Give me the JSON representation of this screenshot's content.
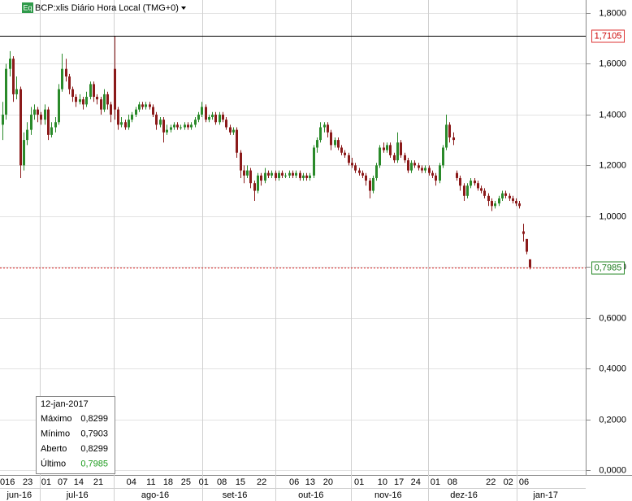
{
  "header": {
    "badge": "Eq",
    "title": "BCP:xlis Diário Hora Local (TMG+0)"
  },
  "chart_data": {
    "type": "candlestick",
    "candles": [
      [
        1.36,
        1.45,
        1.3,
        1.4
      ],
      [
        1.4,
        1.6,
        1.38,
        1.58
      ],
      [
        1.58,
        1.65,
        1.55,
        1.62
      ],
      [
        1.62,
        1.63,
        1.45,
        1.48
      ],
      [
        1.48,
        1.55,
        1.46,
        1.5
      ],
      [
        1.5,
        1.51,
        1.15,
        1.2
      ],
      [
        1.2,
        1.33,
        1.18,
        1.3
      ],
      [
        1.3,
        1.37,
        1.28,
        1.34
      ],
      [
        1.34,
        1.43,
        1.32,
        1.4
      ],
      [
        1.4,
        1.44,
        1.38,
        1.42
      ],
      [
        1.42,
        1.43,
        1.37,
        1.4
      ],
      [
        1.4,
        1.41,
        1.36,
        1.38
      ],
      [
        1.38,
        1.44,
        1.36,
        1.42
      ],
      [
        1.42,
        1.43,
        1.3,
        1.32
      ],
      [
        1.32,
        1.37,
        1.31,
        1.35
      ],
      [
        1.35,
        1.39,
        1.33,
        1.37
      ],
      [
        1.37,
        1.52,
        1.36,
        1.5
      ],
      [
        1.5,
        1.64,
        1.49,
        1.58
      ],
      [
        1.58,
        1.62,
        1.53,
        1.55
      ],
      [
        1.55,
        1.56,
        1.48,
        1.5
      ],
      [
        1.5,
        1.51,
        1.45,
        1.47
      ],
      [
        1.47,
        1.48,
        1.43,
        1.45
      ],
      [
        1.45,
        1.48,
        1.44,
        1.46
      ],
      [
        1.46,
        1.47,
        1.42,
        1.44
      ],
      [
        1.44,
        1.49,
        1.43,
        1.47
      ],
      [
        1.47,
        1.53,
        1.46,
        1.52
      ],
      [
        1.52,
        1.53,
        1.45,
        1.47
      ],
      [
        1.47,
        1.48,
        1.44,
        1.46
      ],
      [
        1.46,
        1.47,
        1.4,
        1.42
      ],
      [
        1.42,
        1.5,
        1.41,
        1.48
      ],
      [
        1.48,
        1.49,
        1.42,
        1.44
      ],
      [
        1.44,
        1.45,
        1.37,
        1.4
      ],
      [
        1.58,
        1.7105,
        1.38,
        1.42
      ],
      [
        1.42,
        1.43,
        1.34,
        1.36
      ],
      [
        1.36,
        1.39,
        1.35,
        1.37
      ],
      [
        1.37,
        1.38,
        1.34,
        1.35
      ],
      [
        1.35,
        1.4,
        1.34,
        1.38
      ],
      [
        1.38,
        1.41,
        1.37,
        1.4
      ],
      [
        1.4,
        1.43,
        1.39,
        1.42
      ],
      [
        1.42,
        1.45,
        1.41,
        1.44
      ],
      [
        1.44,
        1.45,
        1.42,
        1.43
      ],
      [
        1.43,
        1.45,
        1.42,
        1.44
      ],
      [
        1.44,
        1.45,
        1.42,
        1.43
      ],
      [
        1.43,
        1.44,
        1.39,
        1.4
      ],
      [
        1.4,
        1.41,
        1.34,
        1.36
      ],
      [
        1.36,
        1.39,
        1.35,
        1.38
      ],
      [
        1.38,
        1.39,
        1.29,
        1.33
      ],
      [
        1.33,
        1.36,
        1.32,
        1.34
      ],
      [
        1.34,
        1.36,
        1.33,
        1.35
      ],
      [
        1.35,
        1.37,
        1.34,
        1.36
      ],
      [
        1.36,
        1.37,
        1.34,
        1.35
      ],
      [
        1.35,
        1.36,
        1.34,
        1.35
      ],
      [
        1.35,
        1.37,
        1.34,
        1.36
      ],
      [
        1.36,
        1.37,
        1.34,
        1.35
      ],
      [
        1.35,
        1.37,
        1.34,
        1.36
      ],
      [
        1.36,
        1.39,
        1.35,
        1.38
      ],
      [
        1.38,
        1.41,
        1.37,
        1.4
      ],
      [
        1.4,
        1.45,
        1.39,
        1.43
      ],
      [
        1.43,
        1.44,
        1.37,
        1.38
      ],
      [
        1.38,
        1.4,
        1.37,
        1.39
      ],
      [
        1.39,
        1.41,
        1.38,
        1.4
      ],
      [
        1.4,
        1.41,
        1.36,
        1.37
      ],
      [
        1.37,
        1.41,
        1.36,
        1.4
      ],
      [
        1.4,
        1.41,
        1.37,
        1.38
      ],
      [
        1.38,
        1.39,
        1.34,
        1.35
      ],
      [
        1.35,
        1.36,
        1.32,
        1.33
      ],
      [
        1.33,
        1.35,
        1.32,
        1.34
      ],
      [
        1.34,
        1.35,
        1.23,
        1.25
      ],
      [
        1.25,
        1.26,
        1.15,
        1.18
      ],
      [
        1.18,
        1.2,
        1.13,
        1.16
      ],
      [
        1.16,
        1.2,
        1.15,
        1.18
      ],
      [
        1.18,
        1.19,
        1.11,
        1.13
      ],
      [
        1.13,
        1.14,
        1.06,
        1.1
      ],
      [
        1.1,
        1.17,
        1.09,
        1.16
      ],
      [
        1.16,
        1.17,
        1.12,
        1.14
      ],
      [
        1.14,
        1.19,
        1.13,
        1.17
      ],
      [
        1.17,
        1.18,
        1.15,
        1.16
      ],
      [
        1.16,
        1.18,
        1.15,
        1.17
      ],
      [
        1.17,
        1.18,
        1.14,
        1.15
      ],
      [
        1.15,
        1.18,
        1.14,
        1.17
      ],
      [
        1.17,
        1.18,
        1.15,
        1.16
      ],
      [
        1.16,
        1.17,
        1.15,
        1.16
      ],
      [
        1.16,
        1.18,
        1.15,
        1.17
      ],
      [
        1.17,
        1.18,
        1.15,
        1.16
      ],
      [
        1.16,
        1.18,
        1.15,
        1.17
      ],
      [
        1.17,
        1.18,
        1.14,
        1.15
      ],
      [
        1.15,
        1.17,
        1.14,
        1.16
      ],
      [
        1.16,
        1.17,
        1.14,
        1.15
      ],
      [
        1.15,
        1.17,
        1.14,
        1.16
      ],
      [
        1.16,
        1.28,
        1.15,
        1.27
      ],
      [
        1.27,
        1.31,
        1.25,
        1.3
      ],
      [
        1.3,
        1.37,
        1.29,
        1.35
      ],
      [
        1.35,
        1.37,
        1.33,
        1.36
      ],
      [
        1.36,
        1.37,
        1.31,
        1.33
      ],
      [
        1.33,
        1.34,
        1.26,
        1.28
      ],
      [
        1.28,
        1.31,
        1.27,
        1.3
      ],
      [
        1.3,
        1.31,
        1.26,
        1.27
      ],
      [
        1.27,
        1.28,
        1.24,
        1.25
      ],
      [
        1.25,
        1.26,
        1.23,
        1.24
      ],
      [
        1.24,
        1.25,
        1.2,
        1.21
      ],
      [
        1.21,
        1.23,
        1.19,
        1.2
      ],
      [
        1.2,
        1.21,
        1.17,
        1.18
      ],
      [
        1.18,
        1.19,
        1.16,
        1.17
      ],
      [
        1.17,
        1.18,
        1.15,
        1.16
      ],
      [
        1.16,
        1.17,
        1.12,
        1.14
      ],
      [
        1.14,
        1.15,
        1.07,
        1.1
      ],
      [
        1.1,
        1.16,
        1.09,
        1.15
      ],
      [
        1.15,
        1.21,
        1.14,
        1.2
      ],
      [
        1.2,
        1.28,
        1.19,
        1.27
      ],
      [
        1.27,
        1.29,
        1.25,
        1.26
      ],
      [
        1.26,
        1.29,
        1.25,
        1.28
      ],
      [
        1.28,
        1.29,
        1.23,
        1.24
      ],
      [
        1.24,
        1.25,
        1.21,
        1.22
      ],
      [
        1.22,
        1.33,
        1.21,
        1.29
      ],
      [
        1.29,
        1.3,
        1.23,
        1.24
      ],
      [
        1.24,
        1.25,
        1.21,
        1.22
      ],
      [
        1.22,
        1.23,
        1.17,
        1.18
      ],
      [
        1.18,
        1.22,
        1.17,
        1.21
      ],
      [
        1.21,
        1.22,
        1.19,
        1.2
      ],
      [
        1.2,
        1.21,
        1.18,
        1.19
      ],
      [
        1.19,
        1.2,
        1.17,
        1.18
      ],
      [
        1.18,
        1.2,
        1.17,
        1.19
      ],
      [
        1.19,
        1.2,
        1.16,
        1.17
      ],
      [
        1.17,
        1.18,
        1.15,
        1.16
      ],
      [
        1.16,
        1.17,
        1.12,
        1.14
      ],
      [
        1.14,
        1.21,
        1.13,
        1.2
      ],
      [
        1.2,
        1.28,
        1.19,
        1.27
      ],
      [
        1.27,
        1.4,
        1.26,
        1.36
      ],
      [
        1.36,
        1.37,
        1.29,
        1.31
      ],
      [
        1.31,
        1.33,
        1.28,
        1.3
      ],
      [
        1.17,
        1.18,
        1.14,
        1.15
      ],
      [
        1.15,
        1.16,
        1.1,
        1.12
      ],
      [
        1.12,
        1.13,
        1.06,
        1.08
      ],
      [
        1.08,
        1.13,
        1.07,
        1.12
      ],
      [
        1.12,
        1.15,
        1.11,
        1.14
      ],
      [
        1.14,
        1.15,
        1.12,
        1.13
      ],
      [
        1.13,
        1.14,
        1.1,
        1.11
      ],
      [
        1.11,
        1.12,
        1.09,
        1.1
      ],
      [
        1.1,
        1.11,
        1.07,
        1.08
      ],
      [
        1.08,
        1.09,
        1.04,
        1.06
      ],
      [
        1.06,
        1.07,
        1.02,
        1.04
      ],
      [
        1.04,
        1.06,
        1.03,
        1.05
      ],
      [
        1.05,
        1.08,
        1.04,
        1.07
      ],
      [
        1.07,
        1.1,
        1.06,
        1.09
      ],
      [
        1.09,
        1.1,
        1.07,
        1.08
      ],
      [
        1.08,
        1.09,
        1.06,
        1.07
      ],
      [
        1.07,
        1.08,
        1.05,
        1.06
      ],
      [
        1.06,
        1.07,
        1.04,
        1.05
      ],
      [
        1.05,
        1.06,
        1.03,
        1.04
      ],
      [
        0.94,
        0.97,
        0.9,
        0.93
      ],
      [
        0.91,
        0.91,
        0.85,
        0.86
      ],
      [
        0.8299,
        0.8299,
        0.7903,
        0.7985
      ]
    ],
    "up_color": "#2a8a2a",
    "down_color": "#8b1a1a",
    "xlim": [
      -0.5,
      166.5
    ],
    "ylim": [
      0,
      1.8
    ],
    "yticks": [
      {
        "value": 0,
        "label": "0,0000"
      },
      {
        "value": 0.2,
        "label": "0,2000"
      },
      {
        "value": 0.4,
        "label": "0,4000"
      },
      {
        "value": 0.6,
        "label": "0,6000"
      },
      {
        "value": 0.8,
        "label": "0,8000"
      },
      {
        "value": 1.0,
        "label": "1,0000"
      },
      {
        "value": 1.2,
        "label": "1,2000"
      },
      {
        "value": 1.4,
        "label": "1,4000"
      },
      {
        "value": 1.6,
        "label": "1,6000"
      },
      {
        "value": 1.8,
        "label": "1,8000"
      }
    ],
    "xticks": [
      {
        "value": 1.4,
        "label": "016"
      },
      {
        "value": 7.2,
        "label": "23"
      },
      {
        "value": 12.5,
        "label": "01"
      },
      {
        "value": 17.2,
        "label": "07"
      },
      {
        "value": 21.8,
        "label": "14"
      },
      {
        "value": 27.4,
        "label": "21"
      },
      {
        "value": 36.9,
        "label": "04"
      },
      {
        "value": 42.5,
        "label": "11"
      },
      {
        "value": 47.4,
        "label": "18"
      },
      {
        "value": 52.5,
        "label": "25"
      },
      {
        "value": 57.6,
        "label": "01"
      },
      {
        "value": 62.8,
        "label": "08"
      },
      {
        "value": 68.1,
        "label": "15"
      },
      {
        "value": 74.2,
        "label": "22"
      },
      {
        "value": 83.5,
        "label": "06"
      },
      {
        "value": 88.1,
        "label": "13"
      },
      {
        "value": 93.2,
        "label": "20"
      },
      {
        "value": 102.1,
        "label": "01"
      },
      {
        "value": 108.8,
        "label": "10"
      },
      {
        "value": 113.5,
        "label": "17"
      },
      {
        "value": 118.3,
        "label": "24"
      },
      {
        "value": 123.9,
        "label": "01"
      },
      {
        "value": 128.8,
        "label": "08"
      },
      {
        "value": 139.8,
        "label": "22"
      },
      {
        "value": 144.8,
        "label": "02"
      },
      {
        "value": 149.3,
        "label": "06"
      }
    ],
    "month_ticks": [
      {
        "value": 4.8,
        "label": "jun-16"
      },
      {
        "value": 21.4,
        "label": "jul-16"
      },
      {
        "value": 43.7,
        "label": "ago-16"
      },
      {
        "value": 66.5,
        "label": "set-16"
      },
      {
        "value": 88.3,
        "label": "out-16"
      },
      {
        "value": 110.4,
        "label": "nov-16"
      },
      {
        "value": 132.1,
        "label": "dez-16"
      },
      {
        "value": 155.5,
        "label": "jan-17"
      }
    ],
    "xgrid": [
      10.7,
      31.8,
      57.2,
      78,
      99.8,
      121.8,
      147.2
    ],
    "grid": true,
    "high_marker": {
      "value": 1.7105,
      "label": "1,7105"
    },
    "last_marker": {
      "value": 0.7985,
      "label": "0,7985"
    }
  },
  "info_box": {
    "date": "12-jan-2017",
    "rows": [
      [
        "Máximo",
        "0,8299"
      ],
      [
        "Mínimo",
        "0,7903"
      ],
      [
        "Aberto",
        "0,8299"
      ],
      [
        "Último",
        "0,7985"
      ]
    ]
  }
}
